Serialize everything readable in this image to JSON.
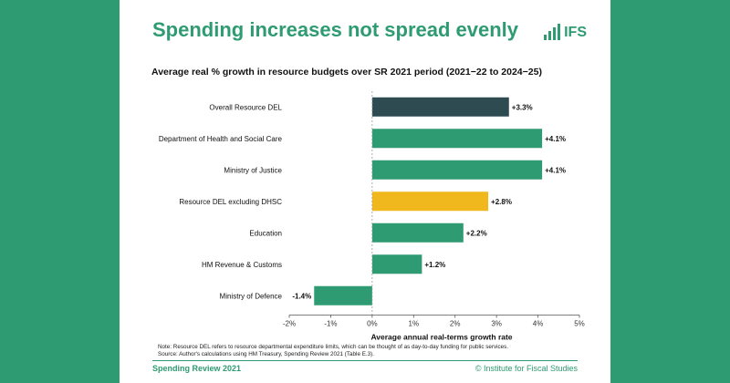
{
  "slide": {
    "title": "Spending increases not spread evenly",
    "logo_text": "IFS",
    "note_line1": "Note: Resource DEL refers to resource departmental expenditure limits, which can be thought of as day-to-day funding for public services.",
    "note_line2": "Source: Author's calculations using HM Treasury, Spending Review 2021 (Table E.3).",
    "footer_left": "Spending Review 2021",
    "footer_right": "© Institute for Fiscal Studies"
  },
  "colors": {
    "background": "#2e9b72",
    "bar_green": "#2e9b72",
    "bar_dark": "#2f4b52",
    "bar_yellow": "#f1b81d"
  },
  "chart_data": {
    "type": "bar",
    "orientation": "horizontal",
    "title": "Average real % growth in resource budgets over SR 2021 period (2021−22 to 2024−25)",
    "xlabel": "Average annual real-terms growth rate",
    "xlim": [
      -2,
      5
    ],
    "xticks": [
      -2,
      -1,
      0,
      1,
      2,
      3,
      4,
      5
    ],
    "xtick_labels": [
      "-2%",
      "-1%",
      "0%",
      "1%",
      "2%",
      "3%",
      "4%",
      "5%"
    ],
    "grid": false,
    "categories": [
      "Overall Resource DEL",
      "Department of Health and Social Care",
      "Ministry of Justice",
      "Resource DEL excluding DHSC",
      "Education",
      "HM Revenue & Customs",
      "Ministry of Defence"
    ],
    "values": [
      3.3,
      4.1,
      4.1,
      2.8,
      2.2,
      1.2,
      -1.4
    ],
    "labels": [
      "+3.3%",
      "+4.1%",
      "+4.1%",
      "+2.8%",
      "+2.2%",
      "+1.2%",
      "-1.4%"
    ],
    "bar_colors": [
      "#2f4b52",
      "#2e9b72",
      "#2e9b72",
      "#f1b81d",
      "#2e9b72",
      "#2e9b72",
      "#2e9b72"
    ]
  }
}
